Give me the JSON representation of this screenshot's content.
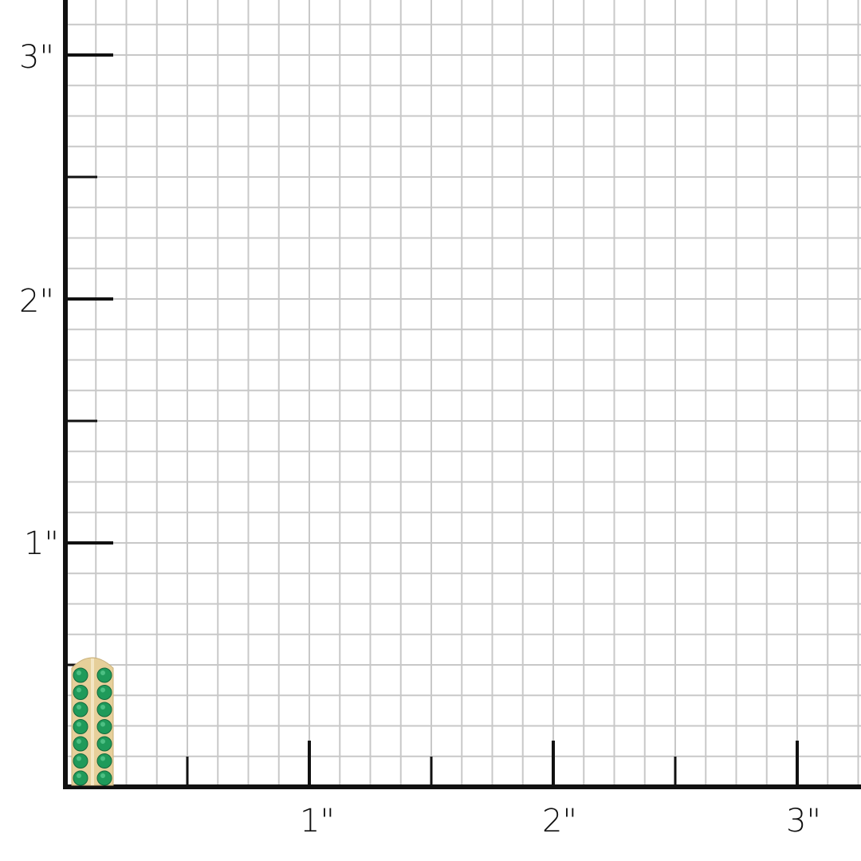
{
  "scale": {
    "unit": "inch",
    "x_labels": [
      "1\"",
      "2\"",
      "3\""
    ],
    "y_labels": [
      "1\"",
      "2\"",
      "3\""
    ],
    "subdivisions_per_inch": 8,
    "grid_color": "#c8c8c8",
    "axis_color": "#111111"
  },
  "product": {
    "name_icon": "emerald-huggie-earring",
    "metal_color": "#e6cf9a",
    "stone_color": "#1f9a5a",
    "stone_rows": 2,
    "stones_per_row": 7
  }
}
